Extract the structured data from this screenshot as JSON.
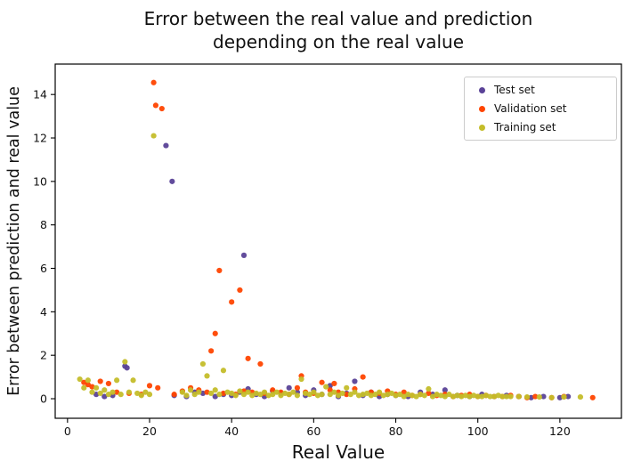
{
  "chart_data": {
    "type": "scatter",
    "title_line1": "Error between the real value and prediction",
    "title_line2": "depending on the real value",
    "xlabel": "Real Value",
    "ylabel": "Error between prediction and real value",
    "xlim": [
      -3,
      135
    ],
    "ylim": [
      -0.9,
      15.4
    ],
    "xticks": [
      0,
      20,
      40,
      60,
      80,
      100,
      120
    ],
    "yticks": [
      0,
      2,
      4,
      6,
      8,
      10,
      12,
      14
    ],
    "grid": false,
    "legend_position": "upper right",
    "marker_radius": 3.1,
    "axis_color": "#000000",
    "series": [
      {
        "name": "Test set",
        "color": "#5a4297",
        "points": [
          [
            24,
            11.65
          ],
          [
            25.5,
            10.0
          ],
          [
            43,
            6.6
          ],
          [
            14,
            1.5
          ],
          [
            14.5,
            1.42
          ],
          [
            7,
            0.2
          ],
          [
            9,
            0.1
          ],
          [
            11,
            0.15
          ],
          [
            26,
            0.15
          ],
          [
            29,
            0.1
          ],
          [
            31,
            0.3
          ],
          [
            33,
            0.25
          ],
          [
            36,
            0.1
          ],
          [
            38,
            0.2
          ],
          [
            40,
            0.15
          ],
          [
            42,
            0.3
          ],
          [
            44,
            0.45
          ],
          [
            46,
            0.2
          ],
          [
            48,
            0.1
          ],
          [
            50,
            0.35
          ],
          [
            52,
            0.25
          ],
          [
            54,
            0.5
          ],
          [
            56,
            0.3
          ],
          [
            58,
            0.15
          ],
          [
            60,
            0.4
          ],
          [
            62,
            0.2
          ],
          [
            64,
            0.6
          ],
          [
            66,
            0.1
          ],
          [
            68,
            0.25
          ],
          [
            70,
            0.8
          ],
          [
            72,
            0.15
          ],
          [
            74,
            0.3
          ],
          [
            76,
            0.1
          ],
          [
            78,
            0.2
          ],
          [
            80,
            0.15
          ],
          [
            83,
            0.1
          ],
          [
            86,
            0.3
          ],
          [
            89,
            0.2
          ],
          [
            92,
            0.4
          ],
          [
            95,
            0.15
          ],
          [
            98,
            0.1
          ],
          [
            101,
            0.2
          ],
          [
            104,
            0.1
          ],
          [
            107,
            0.15
          ],
          [
            110,
            0.1
          ],
          [
            113,
            0.05
          ],
          [
            116,
            0.1
          ],
          [
            120,
            0.05
          ],
          [
            122,
            0.1
          ]
        ]
      },
      {
        "name": "Validation set",
        "color": "#ff4500",
        "points": [
          [
            21,
            14.55
          ],
          [
            21.5,
            13.5
          ],
          [
            23,
            13.35
          ],
          [
            37,
            5.9
          ],
          [
            42,
            5.0
          ],
          [
            40,
            4.45
          ],
          [
            36,
            3.0
          ],
          [
            35,
            2.2
          ],
          [
            44,
            1.85
          ],
          [
            47,
            1.6
          ],
          [
            4,
            0.75
          ],
          [
            5,
            0.65
          ],
          [
            6,
            0.55
          ],
          [
            8,
            0.8
          ],
          [
            10,
            0.7
          ],
          [
            12,
            0.3
          ],
          [
            15,
            0.25
          ],
          [
            18,
            0.2
          ],
          [
            20,
            0.6
          ],
          [
            22,
            0.5
          ],
          [
            26,
            0.2
          ],
          [
            28,
            0.35
          ],
          [
            30,
            0.5
          ],
          [
            32,
            0.4
          ],
          [
            34,
            0.3
          ],
          [
            38,
            0.25
          ],
          [
            41,
            0.2
          ],
          [
            43,
            0.35
          ],
          [
            45,
            0.3
          ],
          [
            48,
            0.25
          ],
          [
            50,
            0.4
          ],
          [
            52,
            0.3
          ],
          [
            54,
            0.2
          ],
          [
            56,
            0.5
          ],
          [
            57,
            1.05
          ],
          [
            58,
            0.3
          ],
          [
            60,
            0.25
          ],
          [
            62,
            0.75
          ],
          [
            64,
            0.4
          ],
          [
            65,
            0.7
          ],
          [
            66,
            0.3
          ],
          [
            68,
            0.2
          ],
          [
            70,
            0.45
          ],
          [
            72,
            1.0
          ],
          [
            74,
            0.3
          ],
          [
            76,
            0.25
          ],
          [
            78,
            0.35
          ],
          [
            80,
            0.2
          ],
          [
            82,
            0.3
          ],
          [
            84,
            0.15
          ],
          [
            86,
            0.2
          ],
          [
            88,
            0.25
          ],
          [
            90,
            0.15
          ],
          [
            92,
            0.2
          ],
          [
            94,
            0.1
          ],
          [
            96,
            0.15
          ],
          [
            98,
            0.2
          ],
          [
            100,
            0.1
          ],
          [
            102,
            0.15
          ],
          [
            104,
            0.1
          ],
          [
            106,
            0.1
          ],
          [
            108,
            0.15
          ],
          [
            110,
            0.1
          ],
          [
            112,
            0.05
          ],
          [
            114,
            0.1
          ],
          [
            118,
            0.05
          ],
          [
            121,
            0.1
          ],
          [
            128,
            0.05
          ]
        ]
      },
      {
        "name": "Training set",
        "color": "#c4bd2a",
        "points": [
          [
            21,
            12.1
          ],
          [
            14,
            1.7
          ],
          [
            33,
            1.6
          ],
          [
            38,
            1.3
          ],
          [
            34,
            1.05
          ],
          [
            3,
            0.9
          ],
          [
            4,
            0.5
          ],
          [
            5,
            0.85
          ],
          [
            6,
            0.3
          ],
          [
            7,
            0.5
          ],
          [
            8,
            0.25
          ],
          [
            9,
            0.4
          ],
          [
            10,
            0.2
          ],
          [
            11,
            0.3
          ],
          [
            12,
            0.85
          ],
          [
            13,
            0.2
          ],
          [
            15,
            0.3
          ],
          [
            16,
            0.85
          ],
          [
            17,
            0.25
          ],
          [
            18,
            0.15
          ],
          [
            19,
            0.3
          ],
          [
            20,
            0.2
          ],
          [
            28,
            0.3
          ],
          [
            29,
            0.15
          ],
          [
            30,
            0.4
          ],
          [
            31,
            0.2
          ],
          [
            32,
            0.3
          ],
          [
            35,
            0.25
          ],
          [
            36,
            0.4
          ],
          [
            37,
            0.2
          ],
          [
            39,
            0.3
          ],
          [
            40,
            0.25
          ],
          [
            41,
            0.15
          ],
          [
            42,
            0.35
          ],
          [
            43,
            0.2
          ],
          [
            44,
            0.3
          ],
          [
            45,
            0.15
          ],
          [
            46,
            0.25
          ],
          [
            47,
            0.2
          ],
          [
            48,
            0.3
          ],
          [
            49,
            0.15
          ],
          [
            50,
            0.2
          ],
          [
            51,
            0.3
          ],
          [
            52,
            0.15
          ],
          [
            53,
            0.25
          ],
          [
            54,
            0.2
          ],
          [
            55,
            0.3
          ],
          [
            56,
            0.15
          ],
          [
            57,
            0.9
          ],
          [
            58,
            0.25
          ],
          [
            59,
            0.2
          ],
          [
            60,
            0.3
          ],
          [
            61,
            0.15
          ],
          [
            62,
            0.2
          ],
          [
            63,
            0.55
          ],
          [
            64,
            0.2
          ],
          [
            65,
            0.3
          ],
          [
            66,
            0.15
          ],
          [
            67,
            0.25
          ],
          [
            68,
            0.5
          ],
          [
            69,
            0.2
          ],
          [
            70,
            0.3
          ],
          [
            71,
            0.15
          ],
          [
            72,
            0.2
          ],
          [
            73,
            0.25
          ],
          [
            74,
            0.15
          ],
          [
            75,
            0.2
          ],
          [
            76,
            0.3
          ],
          [
            77,
            0.15
          ],
          [
            78,
            0.2
          ],
          [
            79,
            0.25
          ],
          [
            80,
            0.15
          ],
          [
            81,
            0.2
          ],
          [
            82,
            0.1
          ],
          [
            83,
            0.2
          ],
          [
            84,
            0.15
          ],
          [
            85,
            0.1
          ],
          [
            86,
            0.2
          ],
          [
            87,
            0.15
          ],
          [
            88,
            0.45
          ],
          [
            89,
            0.1
          ],
          [
            90,
            0.2
          ],
          [
            91,
            0.15
          ],
          [
            92,
            0.1
          ],
          [
            93,
            0.2
          ],
          [
            94,
            0.1
          ],
          [
            95,
            0.15
          ],
          [
            96,
            0.1
          ],
          [
            97,
            0.15
          ],
          [
            98,
            0.1
          ],
          [
            99,
            0.15
          ],
          [
            100,
            0.1
          ],
          [
            101,
            0.1
          ],
          [
            102,
            0.15
          ],
          [
            103,
            0.1
          ],
          [
            104,
            0.1
          ],
          [
            105,
            0.15
          ],
          [
            106,
            0.1
          ],
          [
            107,
            0.1
          ],
          [
            108,
            0.1
          ],
          [
            110,
            0.1
          ],
          [
            112,
            0.08
          ],
          [
            115,
            0.08
          ],
          [
            118,
            0.05
          ],
          [
            121,
            0.08
          ],
          [
            125,
            0.08
          ]
        ]
      }
    ]
  }
}
